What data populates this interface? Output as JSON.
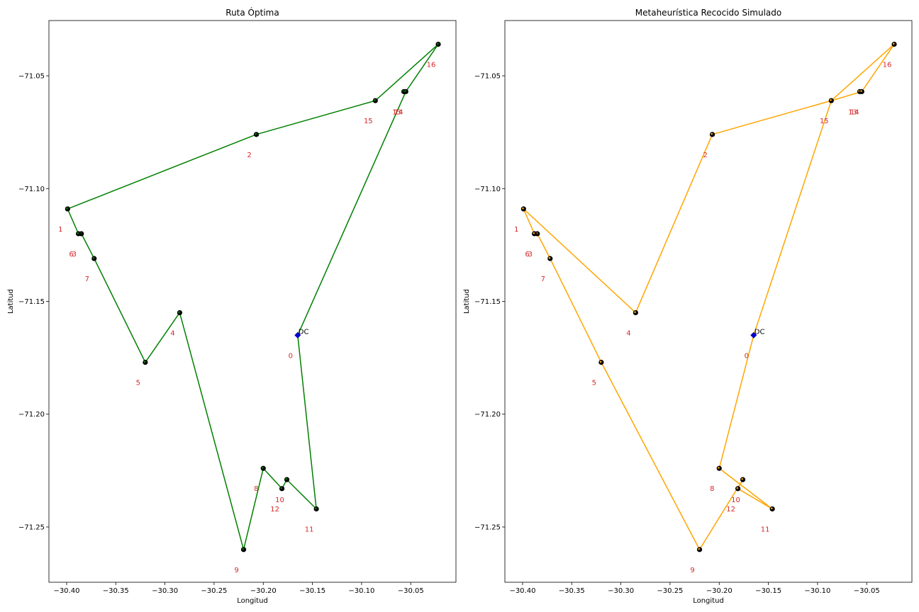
{
  "chart_data": [
    {
      "type": "line",
      "title": "Ruta Óptima",
      "xlabel": "Longitud",
      "ylabel": "Latitud",
      "xlim": [
        -30.418,
        -30.004
      ],
      "ylim": [
        -71.2745,
        -71.0255
      ],
      "xticks": [
        -30.4,
        -30.35,
        -30.3,
        -30.25,
        -30.2,
        -30.15,
        -30.1,
        -30.05
      ],
      "xtick_labels": [
        "−30.40",
        "−30.35",
        "−30.30",
        "−30.25",
        "−30.20",
        "−30.15",
        "−30.10",
        "−30.05"
      ],
      "yticks": [
        -71.05,
        -71.1,
        -71.15,
        -71.2,
        -71.25
      ],
      "ytick_labels": [
        "−71.05",
        "−71.10",
        "−71.15",
        "−71.20",
        "−71.25"
      ],
      "grid": false,
      "route_color": "#008000",
      "point_color": "#000000",
      "label_color": "#d62728",
      "depot_color": "#0000cc",
      "depot_label": "DC",
      "route": [
        0,
        14,
        16,
        15,
        2,
        1,
        6,
        3,
        7,
        5,
        4,
        9,
        8,
        12,
        10,
        11,
        0
      ]
    },
    {
      "type": "line",
      "title": "Metaheurística Recocido Simulado",
      "xlabel": "Longitud",
      "ylabel": "Latitud",
      "xlim": [
        -30.418,
        -30.004
      ],
      "ylim": [
        -71.2745,
        -71.0255
      ],
      "xticks": [
        -30.4,
        -30.35,
        -30.3,
        -30.25,
        -30.2,
        -30.15,
        -30.1,
        -30.05
      ],
      "xtick_labels": [
        "−30.40",
        "−30.35",
        "−30.30",
        "−30.25",
        "−30.20",
        "−30.15",
        "−30.10",
        "−30.05"
      ],
      "yticks": [
        -71.05,
        -71.1,
        -71.15,
        -71.2,
        -71.25
      ],
      "ytick_labels": [
        "−71.05",
        "−71.10",
        "−71.15",
        "−71.20",
        "−71.25"
      ],
      "grid": false,
      "route_color": "#ffa500",
      "point_color": "#000000",
      "label_color": "#d62728",
      "depot_color": "#0000cc",
      "depot_label": "DC",
      "route": [
        0,
        15,
        2,
        4,
        1,
        6,
        3,
        7,
        5,
        9,
        10,
        12,
        11,
        8,
        0,
        15,
        16,
        14,
        15
      ]
    }
  ],
  "nodes": [
    {
      "id": "0",
      "x": -30.165,
      "y": -71.165
    },
    {
      "id": "1",
      "x": -30.399,
      "y": -71.109
    },
    {
      "id": "2",
      "x": -30.207,
      "y": -71.076
    },
    {
      "id": "3",
      "x": -30.385,
      "y": -71.12
    },
    {
      "id": "4",
      "x": -30.285,
      "y": -71.155
    },
    {
      "id": "5",
      "x": -30.32,
      "y": -71.177
    },
    {
      "id": "6",
      "x": -30.388,
      "y": -71.12
    },
    {
      "id": "7",
      "x": -30.372,
      "y": -71.131
    },
    {
      "id": "8",
      "x": -30.2,
      "y": -71.224
    },
    {
      "id": "9",
      "x": -30.22,
      "y": -71.26
    },
    {
      "id": "10",
      "x": -30.176,
      "y": -71.229
    },
    {
      "id": "11",
      "x": -30.146,
      "y": -71.242
    },
    {
      "id": "12",
      "x": -30.181,
      "y": -71.233
    },
    {
      "id": "13",
      "x": -30.057,
      "y": -71.057
    },
    {
      "id": "14",
      "x": -30.055,
      "y": -71.057
    },
    {
      "id": "15",
      "x": -30.086,
      "y": -71.061
    },
    {
      "id": "16",
      "x": -30.022,
      "y": -71.036
    }
  ]
}
